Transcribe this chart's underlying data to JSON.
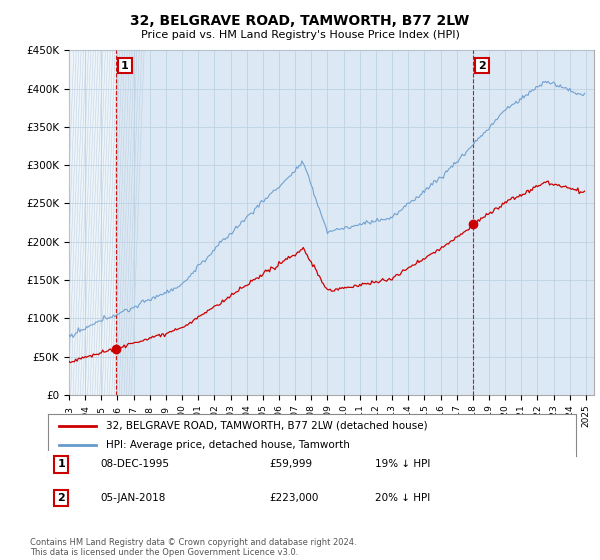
{
  "title": "32, BELGRAVE ROAD, TAMWORTH, B77 2LW",
  "subtitle": "Price paid vs. HM Land Registry's House Price Index (HPI)",
  "ylim": [
    0,
    450000
  ],
  "yticks": [
    0,
    50000,
    100000,
    150000,
    200000,
    250000,
    300000,
    350000,
    400000,
    450000
  ],
  "ytick_labels": [
    "£0",
    "£50K",
    "£100K",
    "£150K",
    "£200K",
    "£250K",
    "£300K",
    "£350K",
    "£400K",
    "£450K"
  ],
  "xlim_start": 1993.0,
  "xlim_end": 2025.5,
  "hpi_color": "#6699cc",
  "price_color": "#cc0000",
  "point1_price": 59999,
  "point1_x": 1995.93,
  "point2_price": 223000,
  "point2_x": 2018.02,
  "legend_line1": "32, BELGRAVE ROAD, TAMWORTH, B77 2LW (detached house)",
  "legend_line2": "HPI: Average price, detached house, Tamworth",
  "table_row1": [
    "1",
    "08-DEC-1995",
    "£59,999",
    "19% ↓ HPI"
  ],
  "table_row2": [
    "2",
    "05-JAN-2018",
    "£223,000",
    "20% ↓ HPI"
  ],
  "footnote": "Contains HM Land Registry data © Crown copyright and database right 2024.\nThis data is licensed under the Open Government Licence v3.0.",
  "background_color": "#ffffff",
  "plot_bg_color": "#dce9f5",
  "grid_color": "#b8cfe0",
  "vline_color": "#cc0000",
  "hatch_color": "#c8d8e8"
}
